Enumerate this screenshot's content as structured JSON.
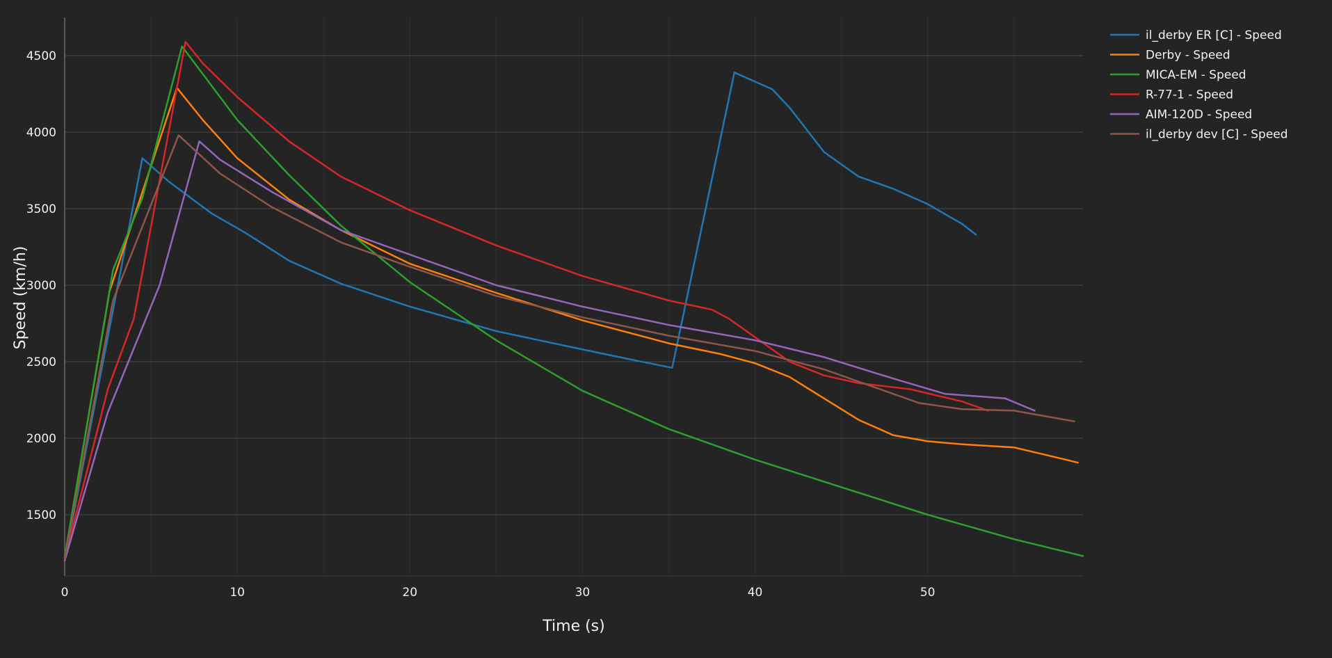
{
  "chart_data": {
    "type": "line",
    "title": "",
    "xlabel": "Time (s)",
    "ylabel": "Speed (km/h)",
    "xlim": [
      0,
      59
    ],
    "ylim": [
      1100,
      4750
    ],
    "xticks": [
      0,
      10,
      20,
      30,
      40,
      50
    ],
    "yticks": [
      1500,
      2000,
      2500,
      3000,
      3500,
      4000,
      4500
    ],
    "grid": "y-major",
    "legend_position": "top-right",
    "background": "#242424",
    "series": [
      {
        "name": "il_derby ER [C] - Speed",
        "color": "#1f77b4",
        "points": [
          [
            0,
            1200
          ],
          [
            4.5,
            3830
          ],
          [
            6,
            3680
          ],
          [
            8.5,
            3470
          ],
          [
            10.5,
            3340
          ],
          [
            13,
            3160
          ],
          [
            16,
            3010
          ],
          [
            20,
            2860
          ],
          [
            25,
            2700
          ],
          [
            30,
            2580
          ],
          [
            33,
            2510
          ],
          [
            35.2,
            2460
          ],
          [
            38.8,
            4390
          ],
          [
            40,
            4330
          ],
          [
            41,
            4280
          ],
          [
            42,
            4160
          ],
          [
            44,
            3870
          ],
          [
            46,
            3710
          ],
          [
            48,
            3630
          ],
          [
            50,
            3530
          ],
          [
            52,
            3400
          ],
          [
            52.8,
            3330
          ]
        ]
      },
      {
        "name": "Derby - Speed",
        "color": "#ff7f0e",
        "points": [
          [
            0,
            1220
          ],
          [
            2.6,
            2960
          ],
          [
            6.5,
            4290
          ],
          [
            8,
            4080
          ],
          [
            10,
            3830
          ],
          [
            13,
            3560
          ],
          [
            16,
            3360
          ],
          [
            20,
            3140
          ],
          [
            25,
            2950
          ],
          [
            30,
            2770
          ],
          [
            35,
            2620
          ],
          [
            38,
            2550
          ],
          [
            40,
            2490
          ],
          [
            42,
            2400
          ],
          [
            44,
            2260
          ],
          [
            46,
            2120
          ],
          [
            48,
            2020
          ],
          [
            50,
            1980
          ],
          [
            52,
            1960
          ],
          [
            55,
            1940
          ],
          [
            58,
            1860
          ],
          [
            58.7,
            1840
          ]
        ]
      },
      {
        "name": "MICA-EM - Speed",
        "color": "#2ca02c",
        "points": [
          [
            0,
            1220
          ],
          [
            2.8,
            3100
          ],
          [
            4.5,
            3570
          ],
          [
            6.8,
            4560
          ],
          [
            8,
            4380
          ],
          [
            10,
            4080
          ],
          [
            13,
            3720
          ],
          [
            16,
            3390
          ],
          [
            20,
            3020
          ],
          [
            25,
            2640
          ],
          [
            30,
            2310
          ],
          [
            35,
            2060
          ],
          [
            40,
            1860
          ],
          [
            45,
            1680
          ],
          [
            50,
            1500
          ],
          [
            55,
            1340
          ],
          [
            59,
            1230
          ]
        ]
      },
      {
        "name": "R-77-1 - Speed",
        "color": "#d62728",
        "points": [
          [
            0,
            1210
          ],
          [
            2.5,
            2320
          ],
          [
            4,
            2780
          ],
          [
            7,
            4590
          ],
          [
            8,
            4450
          ],
          [
            10,
            4230
          ],
          [
            13,
            3940
          ],
          [
            16,
            3710
          ],
          [
            20,
            3490
          ],
          [
            25,
            3260
          ],
          [
            30,
            3060
          ],
          [
            35,
            2900
          ],
          [
            37.5,
            2840
          ],
          [
            38.5,
            2780
          ],
          [
            40,
            2660
          ],
          [
            42,
            2500
          ],
          [
            44,
            2410
          ],
          [
            46,
            2360
          ],
          [
            49,
            2320
          ],
          [
            52,
            2240
          ],
          [
            53.5,
            2180
          ]
        ]
      },
      {
        "name": "AIM-120D - Speed",
        "color": "#9467bd",
        "points": [
          [
            0,
            1200
          ],
          [
            2.5,
            2170
          ],
          [
            5.5,
            3000
          ],
          [
            7.8,
            3940
          ],
          [
            9,
            3820
          ],
          [
            12,
            3610
          ],
          [
            16,
            3360
          ],
          [
            20,
            3200
          ],
          [
            25,
            3000
          ],
          [
            30,
            2860
          ],
          [
            35,
            2740
          ],
          [
            40,
            2640
          ],
          [
            44,
            2530
          ],
          [
            48,
            2390
          ],
          [
            51,
            2290
          ],
          [
            54.5,
            2260
          ],
          [
            56.2,
            2180
          ]
        ]
      },
      {
        "name": "il_derby dev [C] - Speed",
        "color": "#8c564b",
        "points": [
          [
            0,
            1210
          ],
          [
            2.8,
            2900
          ],
          [
            6.6,
            3980
          ],
          [
            9,
            3730
          ],
          [
            12,
            3510
          ],
          [
            16,
            3280
          ],
          [
            20,
            3120
          ],
          [
            25,
            2930
          ],
          [
            30,
            2790
          ],
          [
            35,
            2670
          ],
          [
            40,
            2570
          ],
          [
            44,
            2450
          ],
          [
            47,
            2330
          ],
          [
            49.5,
            2230
          ],
          [
            52,
            2190
          ],
          [
            55,
            2180
          ],
          [
            58.5,
            2110
          ]
        ]
      }
    ]
  }
}
